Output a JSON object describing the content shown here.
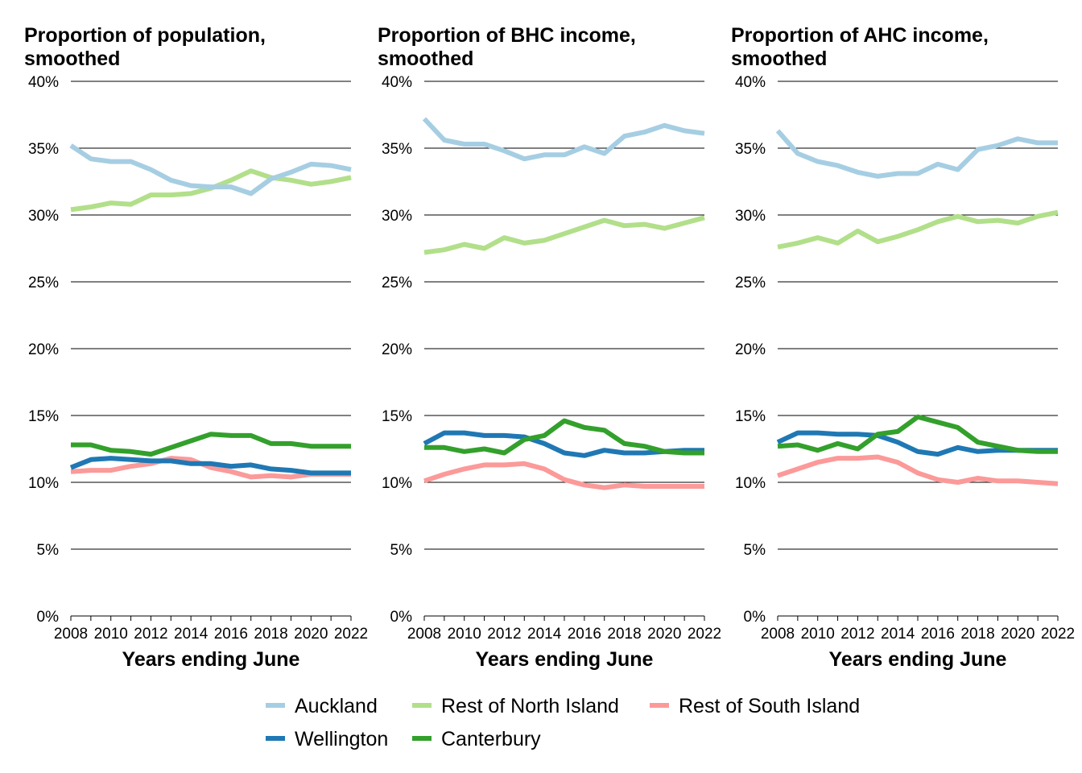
{
  "chart_data": [
    {
      "type": "line",
      "title_lines": [
        "Proportion of population,",
        "smoothed"
      ],
      "xlabel": "Years ending June",
      "ylim": [
        0,
        40
      ],
      "y_ticks": [
        "0%",
        "5%",
        "10%",
        "15%",
        "20%",
        "25%",
        "30%",
        "35%",
        "40%"
      ],
      "x_ticks": [
        "2008",
        "2010",
        "2012",
        "2014",
        "2016",
        "2018",
        "2020",
        "2022"
      ],
      "x": [
        2008,
        2009,
        2010,
        2011,
        2012,
        2013,
        2014,
        2015,
        2016,
        2017,
        2018,
        2019,
        2020,
        2021,
        2022
      ],
      "series": [
        {
          "name": "Auckland",
          "values": [
            35.2,
            34.2,
            34.0,
            34.0,
            33.4,
            32.6,
            32.2,
            32.1,
            32.1,
            31.6,
            32.7,
            33.2,
            33.8,
            33.7,
            33.4
          ]
        },
        {
          "name": "Rest of North Island",
          "values": [
            30.4,
            30.6,
            30.9,
            30.8,
            31.5,
            31.5,
            31.6,
            32.0,
            32.6,
            33.3,
            32.8,
            32.6,
            32.3,
            32.5,
            32.8
          ]
        },
        {
          "name": "Rest of South Island",
          "values": [
            10.8,
            10.9,
            10.9,
            11.2,
            11.4,
            11.8,
            11.7,
            11.1,
            10.8,
            10.4,
            10.5,
            10.4,
            10.6,
            10.6,
            10.6
          ]
        },
        {
          "name": "Wellington",
          "values": [
            11.1,
            11.7,
            11.8,
            11.7,
            11.6,
            11.6,
            11.4,
            11.4,
            11.2,
            11.3,
            11.0,
            10.9,
            10.7,
            10.7,
            10.7
          ]
        },
        {
          "name": "Canterbury",
          "values": [
            12.8,
            12.8,
            12.4,
            12.3,
            12.1,
            12.6,
            13.1,
            13.6,
            13.5,
            13.5,
            12.9,
            12.9,
            12.7,
            12.7,
            12.7
          ]
        }
      ]
    },
    {
      "type": "line",
      "title_lines": [
        "Proportion of BHC income,",
        "smoothed"
      ],
      "xlabel": "Years ending June",
      "ylim": [
        0,
        40
      ],
      "y_ticks": [
        "0%",
        "5%",
        "10%",
        "15%",
        "20%",
        "25%",
        "30%",
        "35%",
        "40%"
      ],
      "x_ticks": [
        "2008",
        "2010",
        "2012",
        "2014",
        "2016",
        "2018",
        "2020",
        "2022"
      ],
      "x": [
        2008,
        2009,
        2010,
        2011,
        2012,
        2013,
        2014,
        2015,
        2016,
        2017,
        2018,
        2019,
        2020,
        2021,
        2022
      ],
      "series": [
        {
          "name": "Auckland",
          "values": [
            37.2,
            35.6,
            35.3,
            35.3,
            34.8,
            34.2,
            34.5,
            34.5,
            35.1,
            34.6,
            35.9,
            36.2,
            36.7,
            36.3,
            36.1
          ]
        },
        {
          "name": "Rest of North Island",
          "values": [
            27.2,
            27.4,
            27.8,
            27.5,
            28.3,
            27.9,
            28.1,
            28.6,
            29.1,
            29.6,
            29.2,
            29.3,
            29.0,
            29.4,
            29.8
          ]
        },
        {
          "name": "Rest of South Island",
          "values": [
            10.1,
            10.6,
            11.0,
            11.3,
            11.3,
            11.4,
            11.0,
            10.2,
            9.8,
            9.6,
            9.8,
            9.7,
            9.7,
            9.7,
            9.7
          ]
        },
        {
          "name": "Wellington",
          "values": [
            12.9,
            13.7,
            13.7,
            13.5,
            13.5,
            13.4,
            12.9,
            12.2,
            12.0,
            12.4,
            12.2,
            12.2,
            12.3,
            12.4,
            12.4
          ]
        },
        {
          "name": "Canterbury",
          "values": [
            12.6,
            12.6,
            12.3,
            12.5,
            12.2,
            13.2,
            13.5,
            14.6,
            14.1,
            13.9,
            12.9,
            12.7,
            12.3,
            12.2,
            12.2
          ]
        }
      ]
    },
    {
      "type": "line",
      "title_lines": [
        "Proportion of AHC income,",
        "smoothed"
      ],
      "xlabel": "Years ending June",
      "ylim": [
        0,
        40
      ],
      "y_ticks": [
        "0%",
        "5%",
        "10%",
        "15%",
        "20%",
        "25%",
        "30%",
        "35%",
        "40%"
      ],
      "x_ticks": [
        "2008",
        "2010",
        "2012",
        "2014",
        "2016",
        "2018",
        "2020",
        "2022"
      ],
      "x": [
        2008,
        2009,
        2010,
        2011,
        2012,
        2013,
        2014,
        2015,
        2016,
        2017,
        2018,
        2019,
        2020,
        2021,
        2022
      ],
      "series": [
        {
          "name": "Auckland",
          "values": [
            36.3,
            34.6,
            34.0,
            33.7,
            33.2,
            32.9,
            33.1,
            33.1,
            33.8,
            33.4,
            34.9,
            35.2,
            35.7,
            35.4,
            35.4
          ]
        },
        {
          "name": "Rest of North Island",
          "values": [
            27.6,
            27.9,
            28.3,
            27.9,
            28.8,
            28.0,
            28.4,
            28.9,
            29.5,
            29.9,
            29.5,
            29.6,
            29.4,
            29.9,
            30.2
          ]
        },
        {
          "name": "Rest of South Island",
          "values": [
            10.5,
            11.0,
            11.5,
            11.8,
            11.8,
            11.9,
            11.5,
            10.7,
            10.2,
            10.0,
            10.3,
            10.1,
            10.1,
            10.0,
            9.9
          ]
        },
        {
          "name": "Wellington",
          "values": [
            13.0,
            13.7,
            13.7,
            13.6,
            13.6,
            13.5,
            13.0,
            12.3,
            12.1,
            12.6,
            12.3,
            12.4,
            12.4,
            12.4,
            12.4
          ]
        },
        {
          "name": "Canterbury",
          "values": [
            12.7,
            12.8,
            12.4,
            12.9,
            12.5,
            13.6,
            13.8,
            14.9,
            14.5,
            14.1,
            13.0,
            12.7,
            12.4,
            12.3,
            12.3
          ]
        }
      ]
    }
  ],
  "legend": {
    "items": [
      {
        "name": "Auckland",
        "color": "#a6cee3"
      },
      {
        "name": "Rest of North Island",
        "color": "#b2df8a"
      },
      {
        "name": "Rest of South Island",
        "color": "#fb9a99"
      },
      {
        "name": "Wellington",
        "color": "#1f78b4"
      },
      {
        "name": "Canterbury",
        "color": "#33a02c"
      }
    ]
  }
}
